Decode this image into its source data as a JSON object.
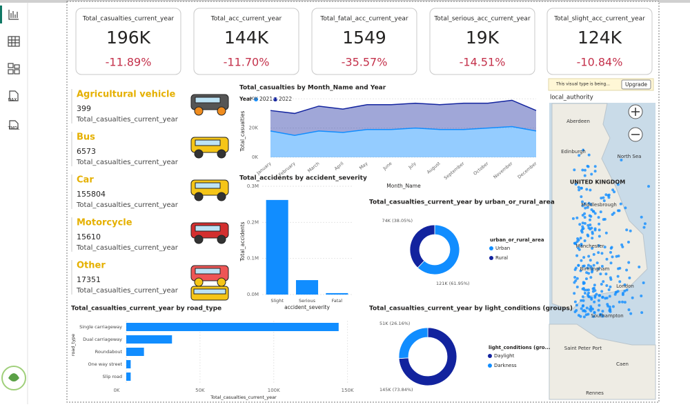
{
  "sidebar": {
    "labels": [
      "DAX",
      "TMDL"
    ]
  },
  "kpis": [
    {
      "title": "Total_casualties_current_year",
      "value": "196K",
      "change": "-11.89%"
    },
    {
      "title": "Total_acc_current_year",
      "value": "144K",
      "change": "-11.70%"
    },
    {
      "title": "Total_fatal_acc_current_year",
      "value": "1549",
      "change": "-35.57%"
    },
    {
      "title": "Total_serious_acc_current_year",
      "value": "19K",
      "change": "-14.51%"
    },
    {
      "title": "Total_slight_acc_current_year",
      "value": "124K",
      "change": "-10.84%"
    }
  ],
  "vehicles": [
    {
      "name": "Agricultural vehicle",
      "value": 399,
      "label": "Total_casualties_current_year"
    },
    {
      "name": "Bus",
      "value": 6573,
      "label": "Total_casualties_current_year"
    },
    {
      "name": "Car",
      "value": 155804,
      "label": "Total_casualties_current_year"
    },
    {
      "name": "Motorcycle",
      "value": 15610,
      "label": "Total_casualties_current_year"
    },
    {
      "name": "Other",
      "value": 17351,
      "label": "Total_casualties_current_year"
    }
  ],
  "chart_data": [
    {
      "type": "area",
      "stacked": true,
      "title": "Total_casualties by Month_Name and Year",
      "legend_title": "Year",
      "x_label": "Month_Name",
      "y_label": "Total_casualties",
      "categories": [
        "January",
        "February",
        "March",
        "April",
        "May",
        "June",
        "July",
        "August",
        "September",
        "October",
        "November",
        "December"
      ],
      "series": [
        {
          "name": "2021",
          "color": "#118dff",
          "values": [
            18000,
            15000,
            18000,
            17000,
            19000,
            19000,
            20000,
            19000,
            19000,
            20000,
            21000,
            18000
          ]
        },
        {
          "name": "2022",
          "color": "#12239e",
          "values": [
            14000,
            15000,
            17000,
            16000,
            17000,
            17000,
            17000,
            17000,
            18000,
            17000,
            18000,
            14000
          ]
        }
      ],
      "ylim": [
        0,
        42000
      ],
      "yticks": [
        {
          "value": 0,
          "label": "0K"
        },
        {
          "value": 20000,
          "label": "20K"
        },
        {
          "value": 40000,
          "label": "40K"
        }
      ]
    },
    {
      "type": "bar",
      "title": "Total_accidents by accident_severity",
      "x_label": "accident_severity",
      "y_label": "Total_accidents",
      "color": "#118dff",
      "categories": [
        "Slight",
        "Serious",
        "Fatal"
      ],
      "values": [
        262000,
        40000,
        4000
      ],
      "ylim": [
        0,
        300000
      ],
      "yticks": [
        {
          "value": 0,
          "label": "0.0M"
        },
        {
          "value": 100000,
          "label": "0.1M"
        },
        {
          "value": 200000,
          "label": "0.2M"
        },
        {
          "value": 300000,
          "label": "0.3M"
        }
      ]
    },
    {
      "type": "donut",
      "title": "Total_casualties_current_year by urban_or_rural_area",
      "legend_title": "urban_or_rural_area",
      "categories": [
        "Urban",
        "Rural"
      ],
      "values": [
        121000,
        74000
      ],
      "value_labels": [
        "121K (61.95%)",
        "74K (38.05%)"
      ],
      "colors": [
        "#118dff",
        "#12239e"
      ]
    },
    {
      "type": "donut",
      "title": "Total_casualties_current_year by light_conditions (groups)",
      "legend_title": "light_conditions (gro...",
      "categories": [
        "Daylight",
        "Darkness"
      ],
      "values": [
        145000,
        51000
      ],
      "value_labels": [
        "145K (73.84%)",
        "51K (26.16%)"
      ],
      "colors": [
        "#12239e",
        "#118dff"
      ]
    },
    {
      "type": "hbar",
      "title": "Total_casualties_current_year by road_type",
      "x_label": "Total_casualties_current_year",
      "y_label": "road_type",
      "color": "#118dff",
      "categories": [
        "Single carriageway",
        "Dual carriageway",
        "Roundabout",
        "One way street",
        "Slip road"
      ],
      "values": [
        144000,
        31000,
        12000,
        3000,
        3000
      ],
      "xlim": [
        0,
        160000
      ],
      "xticks": [
        {
          "value": 0,
          "label": "0K"
        },
        {
          "value": 50000,
          "label": "50K"
        },
        {
          "value": 100000,
          "label": "100K"
        },
        {
          "value": 150000,
          "label": "150K"
        }
      ]
    }
  ],
  "map": {
    "notice": "This visual type is being...",
    "button": "Upgrade",
    "title": "local_authority",
    "labels": [
      "Aberdeen",
      "North Sea",
      "Edinburgh",
      "UNITED KINGDOM",
      "Middlesbrough",
      "Manchester",
      "Birmingham",
      "London",
      "Southampton",
      "Saint Peter Port",
      "Caen",
      "Rennes"
    ]
  }
}
